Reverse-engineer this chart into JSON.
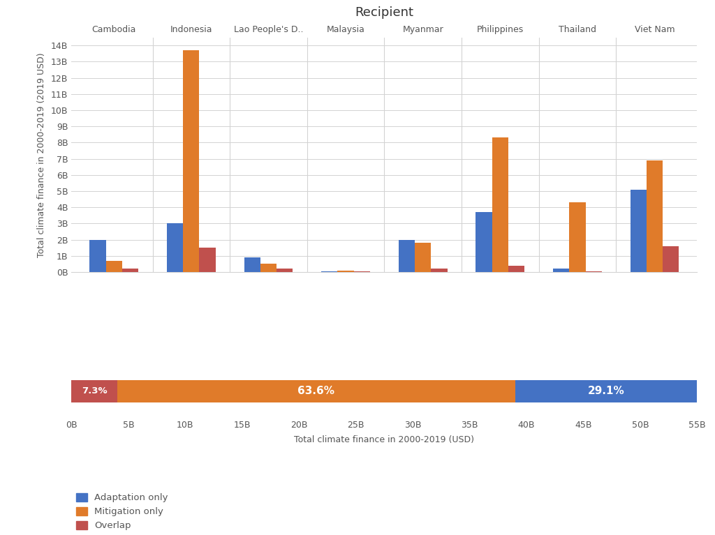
{
  "title": "Recipient",
  "countries": [
    "Cambodia",
    "Indonesia",
    "Lao People's D..",
    "Malaysia",
    "Myanmar",
    "Philippines",
    "Thailand",
    "Viet Nam"
  ],
  "adaptation": [
    2.0,
    3.0,
    0.9,
    0.05,
    2.0,
    3.7,
    0.2,
    5.1
  ],
  "mitigation": [
    0.7,
    13.7,
    0.5,
    0.1,
    1.8,
    8.3,
    4.3,
    6.9
  ],
  "overlap": [
    0.2,
    1.5,
    0.2,
    0.05,
    0.2,
    0.4,
    0.05,
    1.6
  ],
  "bar_colors": {
    "adaptation": "#4472c4",
    "mitigation": "#e07b2a",
    "overlap": "#c0504d"
  },
  "ylabel": "Total climate finance in 2000-2019 (2019 USD)",
  "yticks": [
    0,
    1,
    2,
    3,
    4,
    5,
    6,
    7,
    8,
    9,
    10,
    11,
    12,
    13,
    14
  ],
  "ytick_labels": [
    "0B",
    "1B",
    "2B",
    "3B",
    "4B",
    "5B",
    "6B",
    "7B",
    "8B",
    "9B",
    "10B",
    "11B",
    "12B",
    "13B",
    "14B"
  ],
  "ylim": [
    0,
    14.5
  ],
  "stacked_bar": {
    "overlap_pct": 7.3,
    "mitigation_pct": 63.6,
    "adaptation_pct": 29.1,
    "total": 55.0
  },
  "stacked_xticks": [
    0,
    5,
    10,
    15,
    20,
    25,
    30,
    35,
    40,
    45,
    50,
    55
  ],
  "stacked_xlabel": "Total climate finance in 2000-2019 (USD)",
  "legend_labels": [
    "Adaptation only",
    "Mitigation only",
    "Overlap"
  ],
  "background_color": "#ffffff",
  "grid_color": "#d3d3d3"
}
